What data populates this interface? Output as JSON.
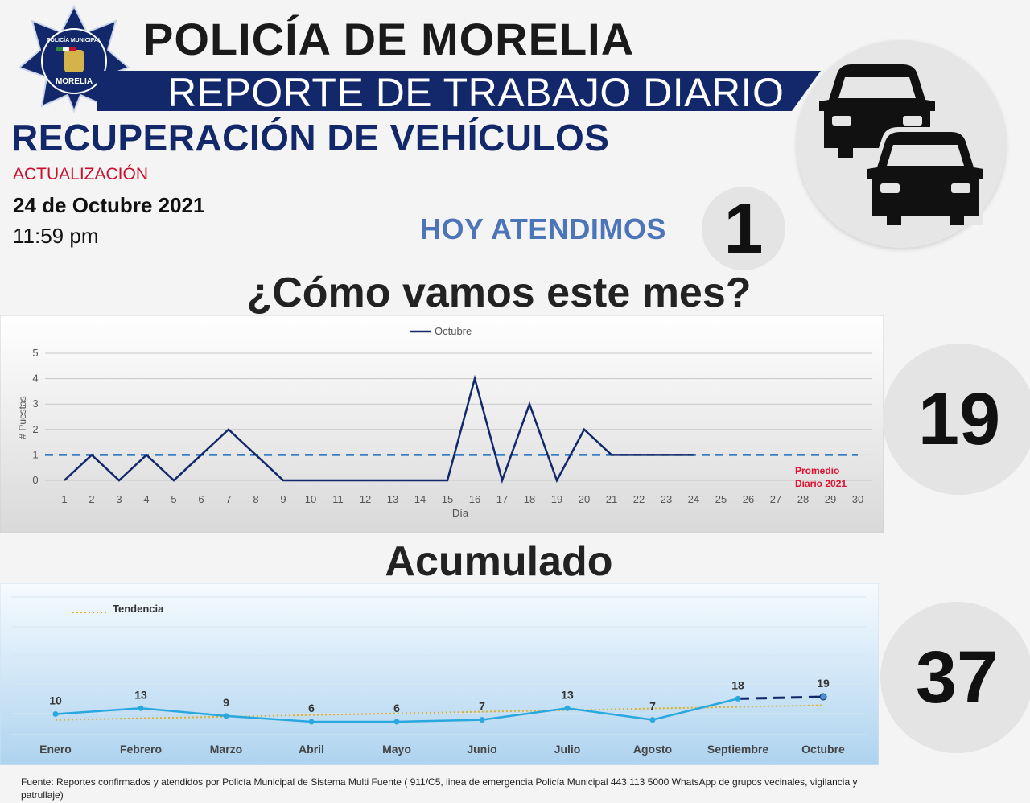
{
  "header": {
    "badge_top_text": "POLICÍA MUNICIPAL",
    "badge_bottom_text": "MORELIA",
    "title": "POLICÍA DE MORELIA",
    "banner": "REPORTE DE TRABAJO DIARIO",
    "section": "RECUPERACIÓN DE VEHÍCULOS"
  },
  "update": {
    "label": "ACTUALIZACIÓN",
    "date": "24 de Octubre 2021",
    "time": "11:59 pm"
  },
  "today": {
    "label": "HOY ATENDIMOS",
    "value": "1"
  },
  "icon": "two-cars-icon",
  "month": {
    "title": "¿Cómo vamos este mes?",
    "total": "19"
  },
  "accumulated": {
    "title": "Acumulado",
    "total": "37"
  },
  "source_note": "Fuente: Reportes confirmados y atendidos por Policía Municipal de Sistema Multi Fuente ( 911/C5, linea de emergencia Policía Municipal 443 113 5000 WhatsApp de grupos vecinales, vigilancia y patrullaje)",
  "colors": {
    "navy": "#12286a",
    "red": "#c8102e",
    "light_blue": "#4b75b8",
    "dashed_avg": "#1f6fc0",
    "acc_line": "#29a8e0",
    "trend": "#e0b020"
  },
  "chart_data": [
    {
      "type": "line",
      "x": [
        1,
        2,
        3,
        4,
        5,
        6,
        7,
        8,
        9,
        10,
        11,
        12,
        13,
        14,
        15,
        16,
        17,
        18,
        19,
        20,
        21,
        22,
        23,
        24,
        25,
        26,
        27,
        28,
        29,
        30
      ],
      "series": [
        {
          "name": "Octubre",
          "values": [
            0,
            1,
            0,
            1,
            0,
            1,
            2,
            1,
            0,
            0,
            0,
            0,
            0,
            0,
            0,
            4,
            0,
            3,
            0,
            2,
            1,
            1,
            1,
            1,
            null,
            null,
            null,
            null,
            null,
            null
          ]
        }
      ],
      "reference_line": {
        "label": "Promedio Diario 2021",
        "value": 1
      },
      "xlabel": "Día",
      "ylabel": "# Puestas",
      "ylim": [
        0,
        5
      ],
      "yticks": [
        0,
        1,
        2,
        3,
        4,
        5
      ],
      "grid": true,
      "legend": "top-center"
    },
    {
      "type": "line",
      "categories": [
        "Enero",
        "Febrero",
        "Marzo",
        "Abril",
        "Mayo",
        "Junio",
        "Julio",
        "Agosto",
        "Septiembre",
        "Octubre"
      ],
      "series": [
        {
          "values": [
            10,
            13,
            9,
            6,
            6,
            7,
            13,
            7,
            18,
            19
          ],
          "data_labels": [
            "10",
            "13",
            "9",
            "6",
            "6",
            "7",
            "13",
            "7",
            "18",
            "19"
          ]
        }
      ],
      "trend": {
        "name": "Tendencia",
        "values": [
          6.9,
          7.8,
          8.6,
          9.5,
          10.3,
          11.2,
          12.0,
          12.9,
          13.7,
          14.6
        ]
      },
      "grid": true,
      "legend": "top-left"
    }
  ]
}
